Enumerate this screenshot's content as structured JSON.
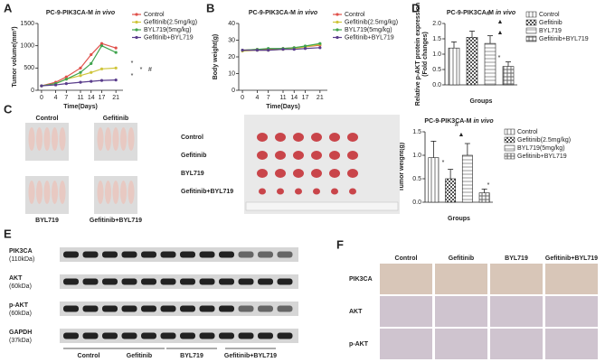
{
  "panel_letters": [
    "A",
    "B",
    "C",
    "D",
    "E",
    "F"
  ],
  "chart_data": [
    {
      "type": "line",
      "title": "PC-9-PIK3CA-M",
      "title_italic": "in vivo",
      "xlabel": "Time(Days)",
      "ylabel": "Tumor volume(mm³)",
      "x": [
        0,
        4,
        7,
        11,
        14,
        17,
        21
      ],
      "xlim": [
        -1,
        23
      ],
      "xticks": [
        0,
        4,
        7,
        11,
        14,
        17,
        21
      ],
      "ylim": [
        0,
        1500
      ],
      "yticks": [
        0,
        500,
        1000,
        1500
      ],
      "series": [
        {
          "name": "Control",
          "color": "#e0504a",
          "values": [
            100,
            180,
            300,
            500,
            800,
            1050,
            950
          ]
        },
        {
          "name": "Gefitinib(2.5mg/kg)",
          "color": "#cfc53a",
          "values": [
            100,
            150,
            250,
            330,
            400,
            480,
            500
          ]
        },
        {
          "name": "BYL719(5mg/kg)",
          "color": "#3fa34d",
          "values": [
            100,
            150,
            250,
            400,
            600,
            1000,
            850
          ]
        },
        {
          "name": "Gefitinib+BYL719",
          "color": "#5a3d8c",
          "values": [
            100,
            120,
            150,
            180,
            200,
            220,
            230
          ]
        }
      ],
      "annotations": [
        "*",
        "*",
        "*",
        "#"
      ]
    },
    {
      "type": "line",
      "title": "PC-9-PIK3CA-M",
      "title_italic": "in vivo",
      "xlabel": "Time(Days)",
      "ylabel": "Body weight(g)",
      "x": [
        0,
        4,
        7,
        11,
        14,
        17,
        21
      ],
      "xlim": [
        -1,
        23
      ],
      "xticks": [
        0,
        4,
        7,
        11,
        14,
        17,
        21
      ],
      "ylim": [
        0,
        40
      ],
      "yticks": [
        0,
        10,
        20,
        30,
        40
      ],
      "series": [
        {
          "name": "Control",
          "color": "#e0504a",
          "values": [
            24,
            24.5,
            24.5,
            25,
            25.5,
            26,
            27
          ]
        },
        {
          "name": "Gefitinib(2.5mg/kg)",
          "color": "#cfc53a",
          "values": [
            23.5,
            24,
            24,
            24.5,
            25,
            26,
            27.5
          ]
        },
        {
          "name": "BYL719(5mg/kg)",
          "color": "#3fa34d",
          "values": [
            24,
            24.5,
            25,
            25,
            25.5,
            26.5,
            28
          ]
        },
        {
          "name": "Gefitinib+BYL719",
          "color": "#5a3d8c",
          "values": [
            24,
            24,
            24,
            24.5,
            24.5,
            25,
            25.5
          ]
        }
      ],
      "annotations": []
    },
    {
      "type": "bar",
      "title": "PC-9-PIK3CA-M",
      "title_italic": "in vivo",
      "xlabel": "Groups",
      "ylabel": "Relative p-AKT protein expression",
      "ylabel_2": "(Fold changes)",
      "ylim": [
        0,
        2
      ],
      "yticks": [
        {
          "value": 0,
          "label": "0.0"
        },
        {
          "value": 0.5,
          "label": "0.5"
        },
        {
          "value": 1,
          "label": "1.0"
        },
        {
          "value": 1.5,
          "label": "1.5"
        },
        {
          "value": 2,
          "label": "2.0"
        }
      ],
      "series": [
        {
          "name": "Control",
          "color": "#777777",
          "pattern": "vertical",
          "values": [
            1.2
          ],
          "errors": [
            0.2
          ]
        },
        {
          "name": "Gefitinib",
          "color": "#555555",
          "pattern": "checker",
          "values": [
            1.55
          ],
          "errors": [
            0.2
          ]
        },
        {
          "name": "BYL719",
          "color": "#999999",
          "pattern": "horizontal",
          "values": [
            1.35
          ],
          "errors": [
            0.25
          ]
        },
        {
          "name": "Gefitinib+BYL719",
          "color": "#666666",
          "pattern": "dense",
          "values": [
            0.6
          ],
          "errors": [
            0.15
          ]
        }
      ],
      "annotations": [
        "#",
        "▲",
        "▲",
        "*"
      ]
    },
    {
      "type": "bar",
      "title": "PC-9-PIK3CA-M",
      "title_italic": "in vivo",
      "xlabel": "Groups",
      "ylabel": "Tumor weight(g)",
      "ylim": [
        0,
        1.5
      ],
      "yticks": [
        {
          "value": 0,
          "label": "0.0"
        },
        {
          "value": 0.5,
          "label": "0.5"
        },
        {
          "value": 1,
          "label": "1.0"
        },
        {
          "value": 1.5,
          "label": "1.5"
        }
      ],
      "series": [
        {
          "name": "Control",
          "color": "#777777",
          "pattern": "vertical",
          "values": [
            0.95
          ],
          "errors": [
            0.35
          ]
        },
        {
          "name": "Gefitinib(2.5mg/kg)",
          "color": "#555555",
          "pattern": "checker",
          "values": [
            0.5
          ],
          "errors": [
            0.2
          ]
        },
        {
          "name": "BYL719(5mg/kg)",
          "color": "#999999",
          "pattern": "horizontal",
          "values": [
            1.0
          ],
          "errors": [
            0.25
          ]
        },
        {
          "name": "Gefitinib+BYL719",
          "color": "#666666",
          "pattern": "dense",
          "values": [
            0.2
          ],
          "errors": [
            0.08
          ]
        }
      ],
      "annotations": [
        "#",
        "▲",
        "*",
        "*"
      ]
    }
  ],
  "photos": {
    "mice_labels": [
      "Control",
      "Gefitinib",
      "BYL719",
      "Gefitinib+BYL719"
    ],
    "tumor_labels": [
      "Control",
      "Gefitinib",
      "BYL719",
      "Gefitinib+BYL719"
    ]
  },
  "blot": {
    "rows": [
      {
        "protein": "PIK3CA",
        "size": "(110kDa)"
      },
      {
        "protein": "AKT",
        "size": "(60kDa)"
      },
      {
        "protein": "p-AKT",
        "size": "(60kDa)"
      },
      {
        "protein": "GAPDH",
        "size": "(37kDa)"
      }
    ],
    "groups": [
      "Control",
      "Gefitinib",
      "BYL719",
      "Gefitinib+BYL719"
    ]
  },
  "ihc": {
    "columns": [
      "Control",
      "Gefitinib",
      "BYL719",
      "Gefitinib+BYL719"
    ],
    "rows": [
      "PIK3CA",
      "AKT",
      "p-AKT"
    ]
  }
}
